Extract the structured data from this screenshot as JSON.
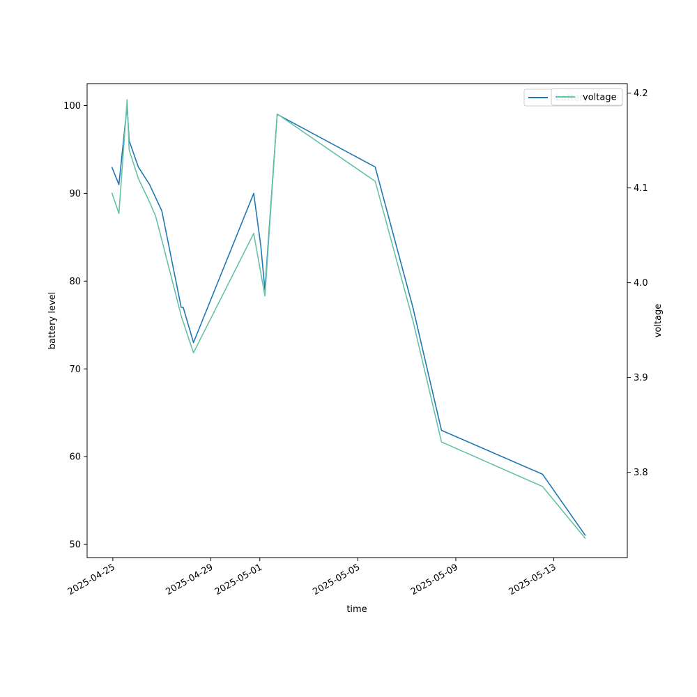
{
  "chart_data": {
    "type": "line",
    "xlabel": "time",
    "ylabel_left": "battery level",
    "ylabel_right": "voltage",
    "ylim_left": [
      48.5,
      102.5
    ],
    "ylim_right": [
      3.71,
      4.21
    ],
    "xlim": [
      "2025-04-23T22:50",
      "2025-05-16T00:00"
    ],
    "x_ticks": [
      "2025-04-25",
      "2025-04-29",
      "2025-05-01",
      "2025-05-05",
      "2025-05-09",
      "2025-05-13"
    ],
    "y_ticks_left": [
      50,
      60,
      70,
      80,
      90,
      100
    ],
    "y_ticks_right": [
      3.8,
      3.9,
      4.0,
      4.1,
      4.2
    ],
    "legend_placement": "top-right",
    "grid": false,
    "series": [
      {
        "name": "battery",
        "axis": "left",
        "color": "#1f77b4",
        "points": [
          [
            "2025-04-24T23:00",
            93
          ],
          [
            "2025-04-25T06:00",
            91
          ],
          [
            "2025-04-25T14:00",
            100
          ],
          [
            "2025-04-25T16:00",
            96
          ],
          [
            "2025-04-26T01:00",
            93
          ],
          [
            "2025-04-26T12:00",
            91
          ],
          [
            "2025-04-27T00:00",
            88
          ],
          [
            "2025-04-27T19:00",
            77
          ],
          [
            "2025-04-27T21:00",
            77
          ],
          [
            "2025-04-28T07:00",
            73
          ],
          [
            "2025-04-30T18:00",
            90
          ],
          [
            "2025-05-01T01:00",
            84
          ],
          [
            "2025-05-01T05:00",
            79
          ],
          [
            "2025-05-01T17:00",
            99
          ],
          [
            "2025-05-05T17:00",
            93
          ],
          [
            "2025-05-07T06:00",
            77
          ],
          [
            "2025-05-08T10:00",
            63
          ],
          [
            "2025-05-12T13:00",
            58
          ],
          [
            "2025-05-14T07:00",
            51
          ]
        ]
      },
      {
        "name": "voltage",
        "axis": "right",
        "color": "#66c2a5",
        "points": [
          [
            "2025-04-24T23:00",
            4.095
          ],
          [
            "2025-04-25T06:00",
            4.073
          ],
          [
            "2025-04-25T14:00",
            4.193
          ],
          [
            "2025-04-25T16:00",
            4.14
          ],
          [
            "2025-04-26T01:00",
            4.11
          ],
          [
            "2025-04-26T12:00",
            4.085
          ],
          [
            "2025-04-26T18:00",
            4.07
          ],
          [
            "2025-04-27T00:00",
            4.045
          ],
          [
            "2025-04-27T19:00",
            3.965
          ],
          [
            "2025-04-28T07:00",
            3.926
          ],
          [
            "2025-04-30T18:00",
            4.052
          ],
          [
            "2025-05-01T05:00",
            3.986
          ],
          [
            "2025-05-01T17:00",
            4.178
          ],
          [
            "2025-05-05T17:00",
            4.107
          ],
          [
            "2025-05-07T06:00",
            3.96
          ],
          [
            "2025-05-08T10:00",
            3.832
          ],
          [
            "2025-05-12T13:00",
            3.785
          ],
          [
            "2025-05-14T07:00",
            3.73
          ]
        ]
      }
    ],
    "legends": [
      {
        "label": "battery",
        "color": "#1f77b4"
      },
      {
        "label": "voltage",
        "color": "#66c2a5"
      }
    ]
  }
}
